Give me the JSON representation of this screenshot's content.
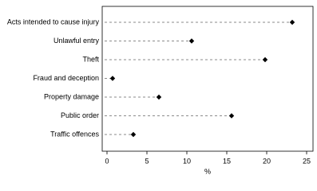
{
  "chart_data": {
    "type": "dot",
    "categories": [
      "Acts intended to cause injury",
      "Unlawful entry",
      "Theft",
      "Fraud and deception",
      "Property damage",
      "Public order",
      "Traffic offences"
    ],
    "values": [
      23.2,
      10.6,
      19.8,
      0.7,
      6.5,
      15.6,
      3.3
    ],
    "color": "#000000",
    "x_label": "%",
    "xlim": [
      0,
      25
    ],
    "xticks": [
      0,
      5,
      10,
      15,
      20,
      25
    ]
  }
}
